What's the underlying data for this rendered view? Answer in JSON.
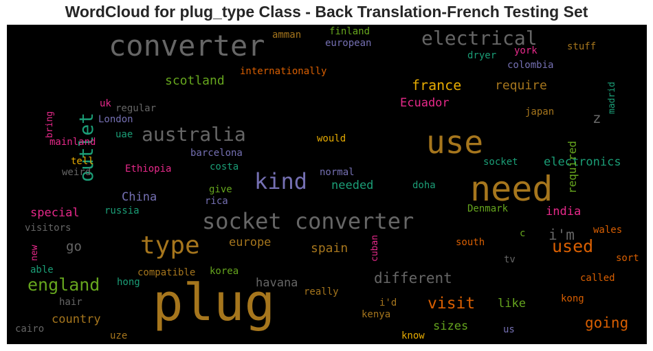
{
  "title": "WordCloud for plug_type Class - Back Translation-French Testing Set",
  "colors": {
    "background": "#000000",
    "title": "#262626"
  },
  "words": [
    {
      "text": "plug",
      "color": "#a6761d"
    },
    {
      "text": "need",
      "color": "#a6761d"
    },
    {
      "text": "use",
      "color": "#a6761d"
    },
    {
      "text": "converter",
      "color": "#666666"
    },
    {
      "text": "socket converter",
      "color": "#666666"
    },
    {
      "text": "type",
      "color": "#a6761d"
    },
    {
      "text": "electrical",
      "color": "#666666"
    },
    {
      "text": "australia",
      "color": "#666666"
    },
    {
      "text": "kind",
      "color": "#7570b3"
    },
    {
      "text": "outlet",
      "color": "#1b9e77"
    },
    {
      "text": "england",
      "color": "#66a61e"
    },
    {
      "text": "used",
      "color": "#d95f02"
    },
    {
      "text": "different",
      "color": "#666666"
    },
    {
      "text": "i'm",
      "color": "#666666"
    },
    {
      "text": "visit",
      "color": "#d95f02"
    },
    {
      "text": "going",
      "color": "#d95f02"
    },
    {
      "text": "france",
      "color": "#e6ab02"
    },
    {
      "text": "electronics",
      "color": "#1b9e77"
    },
    {
      "text": "scotland",
      "color": "#66a61e"
    },
    {
      "text": "require",
      "color": "#a6761d"
    },
    {
      "text": "Ecuador",
      "color": "#e7298a"
    },
    {
      "text": "China",
      "color": "#7570b3"
    },
    {
      "text": "special",
      "color": "#e7298a"
    },
    {
      "text": "havana",
      "color": "#666666"
    },
    {
      "text": "needed",
      "color": "#1b9e77"
    },
    {
      "text": "europe",
      "color": "#a6761d"
    },
    {
      "text": "spain",
      "color": "#a6761d"
    },
    {
      "text": "country",
      "color": "#a6761d"
    },
    {
      "text": "sizes",
      "color": "#66a61e"
    },
    {
      "text": "like",
      "color": "#66a61e"
    },
    {
      "text": "india",
      "color": "#e7298a"
    },
    {
      "text": "go",
      "color": "#666666"
    },
    {
      "text": "required",
      "color": "#66a61e"
    },
    {
      "text": "z",
      "color": "#666666"
    },
    {
      "text": "finland",
      "color": "#66a61e"
    },
    {
      "text": "amman",
      "color": "#a6761d"
    },
    {
      "text": "european",
      "color": "#7570b3"
    },
    {
      "text": "dryer",
      "color": "#1b9e77"
    },
    {
      "text": "york",
      "color": "#e7298a"
    },
    {
      "text": "stuff",
      "color": "#a6761d"
    },
    {
      "text": "colombia",
      "color": "#7570b3"
    },
    {
      "text": "madrid",
      "color": "#1b9e77"
    },
    {
      "text": "internationally",
      "color": "#d95f02"
    },
    {
      "text": "bring",
      "color": "#e7298a"
    },
    {
      "text": "uk",
      "color": "#e7298a"
    },
    {
      "text": "regular",
      "color": "#666666"
    },
    {
      "text": "London",
      "color": "#7570b3"
    },
    {
      "text": "japan",
      "color": "#a6761d"
    },
    {
      "text": "uae",
      "color": "#1b9e77"
    },
    {
      "text": "would",
      "color": "#e6ab02"
    },
    {
      "text": "mainland",
      "color": "#e7298a"
    },
    {
      "text": "barcelona",
      "color": "#7570b3"
    },
    {
      "text": "tell",
      "color": "#e6ab02"
    },
    {
      "text": "socket",
      "color": "#1b9e77"
    },
    {
      "text": "Ethiopia",
      "color": "#e7298a"
    },
    {
      "text": "costa",
      "color": "#1b9e77"
    },
    {
      "text": "weird",
      "color": "#666666"
    },
    {
      "text": "normal",
      "color": "#7570b3"
    },
    {
      "text": "doha",
      "color": "#1b9e77"
    },
    {
      "text": "give",
      "color": "#66a61e"
    },
    {
      "text": "rica",
      "color": "#7570b3"
    },
    {
      "text": "Denmark",
      "color": "#66a61e"
    },
    {
      "text": "russia",
      "color": "#1b9e77"
    },
    {
      "text": "visitors",
      "color": "#666666"
    },
    {
      "text": "wales",
      "color": "#d95f02"
    },
    {
      "text": "c",
      "color": "#66a61e"
    },
    {
      "text": "south",
      "color": "#d95f02"
    },
    {
      "text": "new",
      "color": "#e7298a"
    },
    {
      "text": "cuban",
      "color": "#e7298a"
    },
    {
      "text": "tv",
      "color": "#666666"
    },
    {
      "text": "sort",
      "color": "#d95f02"
    },
    {
      "text": "able",
      "color": "#1b9e77"
    },
    {
      "text": "compatible",
      "color": "#a6761d"
    },
    {
      "text": "korea",
      "color": "#66a61e"
    },
    {
      "text": "hong",
      "color": "#1b9e77"
    },
    {
      "text": "called",
      "color": "#d95f02"
    },
    {
      "text": "really",
      "color": "#a6761d"
    },
    {
      "text": "kong",
      "color": "#d95f02"
    },
    {
      "text": "hair",
      "color": "#666666"
    },
    {
      "text": "i'd",
      "color": "#a6761d"
    },
    {
      "text": "kenya",
      "color": "#a6761d"
    },
    {
      "text": "cairo",
      "color": "#666666"
    },
    {
      "text": "uze",
      "color": "#a6761d"
    },
    {
      "text": "know",
      "color": "#e6ab02"
    },
    {
      "text": "us",
      "color": "#7570b3"
    }
  ]
}
